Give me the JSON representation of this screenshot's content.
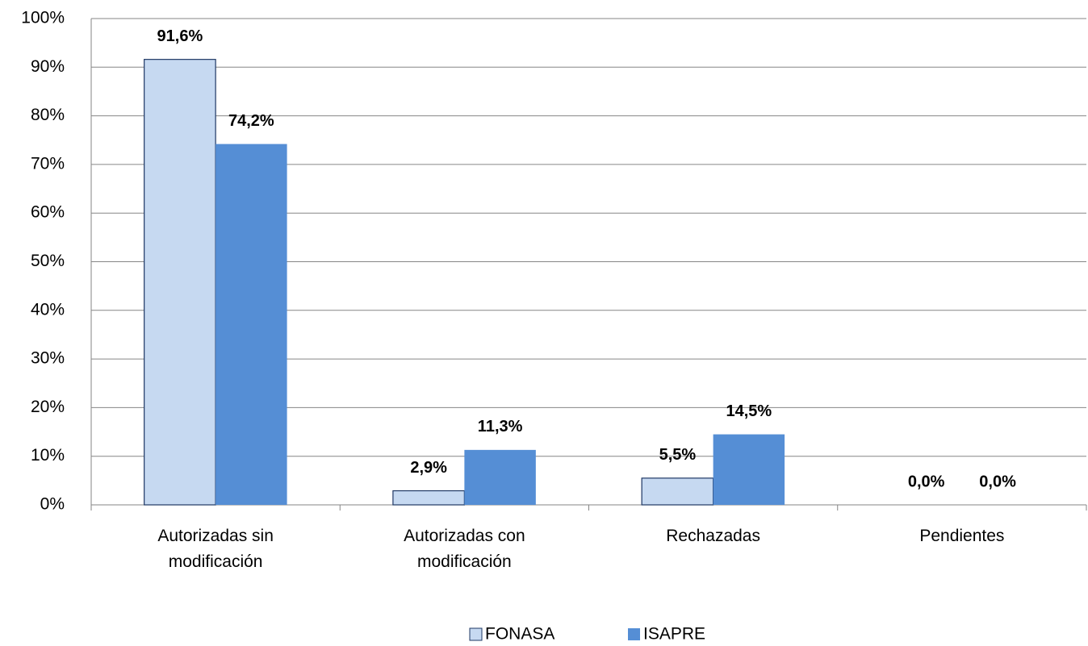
{
  "chart_data": {
    "type": "bar",
    "categories": [
      "Autorizadas sin modificación",
      "Autorizadas con modificación",
      "Rechazadas",
      "Pendientes"
    ],
    "series": [
      {
        "name": "FONASA",
        "color": "#c6d9f1",
        "values": [
          91.6,
          2.9,
          5.5,
          0.0
        ],
        "value_labels": [
          "91,6%",
          "2,9%",
          "5,5%",
          "0,0%"
        ]
      },
      {
        "name": "ISAPRE",
        "color": "#558ed5",
        "values": [
          74.2,
          11.3,
          14.5,
          0.0
        ],
        "value_labels": [
          "74,2%",
          "11,3%",
          "14,5%",
          "0,0%"
        ]
      }
    ],
    "ylim": [
      0,
      100
    ],
    "yticks": [
      {
        "value": 0,
        "label": "0%"
      },
      {
        "value": 10,
        "label": "10%"
      },
      {
        "value": 20,
        "label": "20%"
      },
      {
        "value": 30,
        "label": "30%"
      },
      {
        "value": 40,
        "label": "40%"
      },
      {
        "value": 50,
        "label": "50%"
      },
      {
        "value": 60,
        "label": "60%"
      },
      {
        "value": 70,
        "label": "70%"
      },
      {
        "value": 80,
        "label": "80%"
      },
      {
        "value": 90,
        "label": "90%"
      },
      {
        "value": 100,
        "label": "100%"
      }
    ],
    "grid": true,
    "legend": "bottom"
  }
}
